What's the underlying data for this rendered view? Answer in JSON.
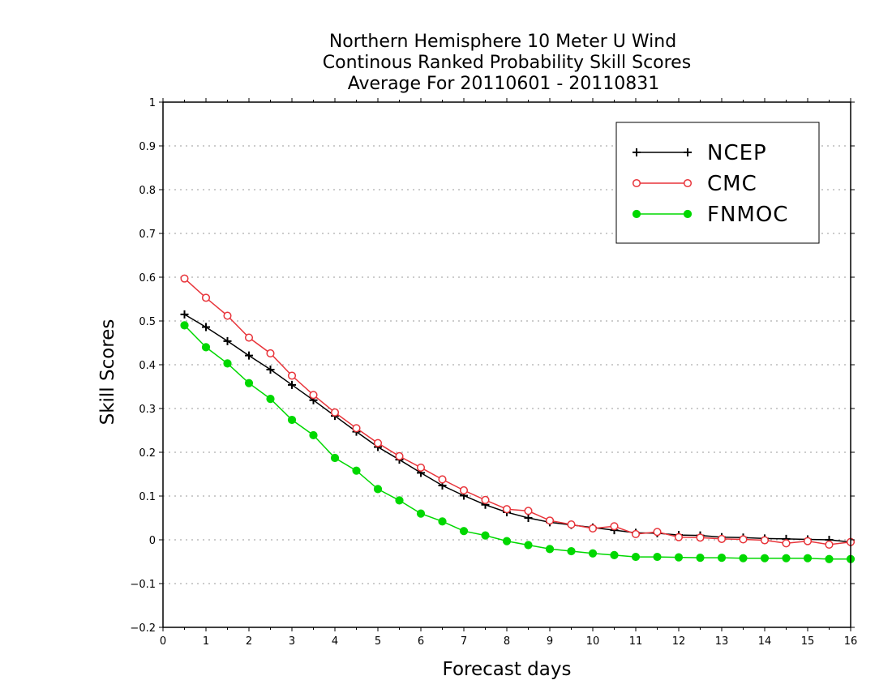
{
  "chart_data": {
    "type": "line",
    "title": [
      "Northern Hemisphere 10 Meter U Wind",
      "Continous Ranked Probability Skill Scores",
      "Average For 20110601 - 20110831"
    ],
    "xlabel": "Forecast days",
    "ylabel": "Skill Scores",
    "xlim": [
      0,
      16
    ],
    "ylim": [
      -0.2,
      1
    ],
    "x_ticks": [
      0,
      1,
      2,
      3,
      4,
      5,
      6,
      7,
      8,
      9,
      10,
      11,
      12,
      13,
      14,
      15,
      16
    ],
    "x_tick_labels": [
      "0",
      "1",
      "2",
      "3",
      "4",
      "5",
      "6",
      "7",
      "8",
      "9",
      "10",
      "11",
      "12",
      "13",
      "14",
      "15",
      "16"
    ],
    "y_ticks": [
      -0.2,
      -0.1,
      0,
      0.1,
      0.2,
      0.3,
      0.4,
      0.5,
      0.6,
      0.7,
      0.8,
      0.9,
      1
    ],
    "y_tick_labels": [
      "−0.2",
      "−0.1",
      "0",
      "0.1",
      "0.2",
      "0.3",
      "0.4",
      "0.5",
      "0.6",
      "0.7",
      "0.8",
      "0.9",
      "1"
    ],
    "grid": "horizontal dotted",
    "legend_position": "top-right",
    "x": [
      0.5,
      1,
      1.5,
      2,
      2.5,
      3,
      3.5,
      4,
      4.5,
      5,
      5.5,
      6,
      6.5,
      7,
      7.5,
      8,
      8.5,
      9,
      9.5,
      10,
      10.5,
      11,
      11.5,
      12,
      12.5,
      13,
      13.5,
      14,
      14.5,
      15,
      15.5,
      16
    ],
    "series": [
      {
        "name": "NCEP",
        "color": "#000000",
        "marker": "plus",
        "values": [
          0.515,
          0.486,
          0.454,
          0.421,
          0.389,
          0.354,
          0.319,
          0.283,
          0.247,
          0.212,
          0.183,
          0.153,
          0.124,
          0.101,
          0.08,
          0.063,
          0.05,
          0.04,
          0.034,
          0.028,
          0.022,
          0.016,
          0.015,
          0.011,
          0.01,
          0.006,
          0.005,
          0.003,
          0.002,
          0.001,
          0.0,
          -0.005
        ]
      },
      {
        "name": "CMC",
        "color": "#e8343a",
        "marker": "open-circle",
        "values": [
          0.597,
          0.553,
          0.512,
          0.462,
          0.426,
          0.375,
          0.331,
          0.291,
          0.255,
          0.221,
          0.191,
          0.165,
          0.138,
          0.113,
          0.091,
          0.07,
          0.066,
          0.044,
          0.035,
          0.026,
          0.031,
          0.013,
          0.018,
          0.006,
          0.005,
          0.002,
          0.001,
          -0.001,
          -0.008,
          -0.003,
          -0.011,
          -0.005
        ]
      },
      {
        "name": "FNMOC",
        "color": "#00d800",
        "marker": "filled-circle",
        "values": [
          0.49,
          0.44,
          0.403,
          0.358,
          0.322,
          0.274,
          0.239,
          0.187,
          0.158,
          0.116,
          0.09,
          0.06,
          0.042,
          0.02,
          0.01,
          -0.003,
          -0.012,
          -0.021,
          -0.026,
          -0.031,
          -0.035,
          -0.039,
          -0.039,
          -0.04,
          -0.041,
          -0.041,
          -0.042,
          -0.042,
          -0.042,
          -0.042,
          -0.044,
          -0.044
        ]
      }
    ]
  }
}
